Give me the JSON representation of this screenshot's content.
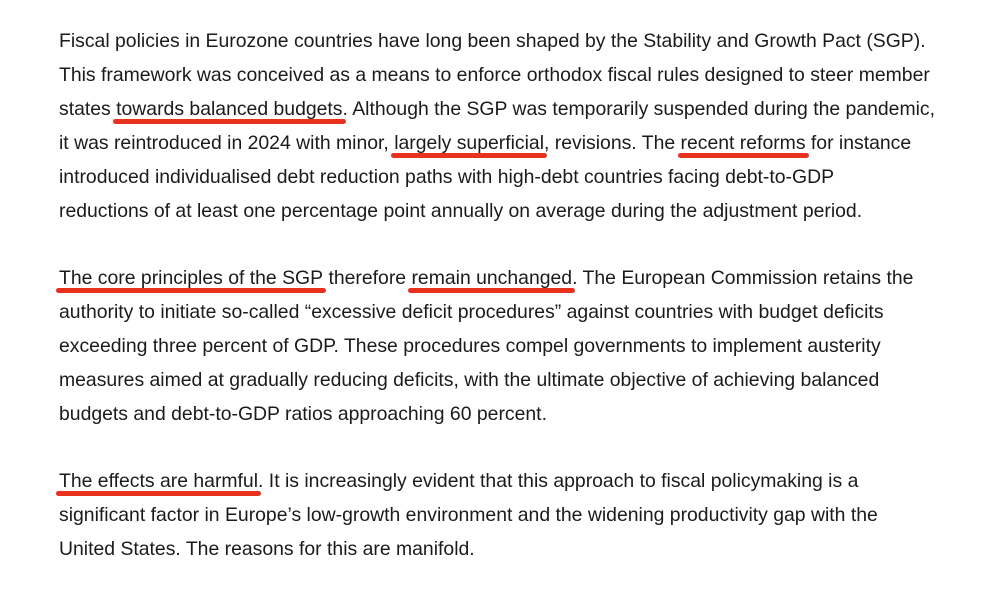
{
  "highlight_color": "#e8321e",
  "article": {
    "paragraphs": [
      {
        "lines": [
          [
            {
              "text": "Fiscal policies in Eurozone countries have long been shaped by the Stability and Growth Pact (SGP)."
            }
          ],
          [
            {
              "text": "This framework was conceived as a means to enforce orthodox fiscal rules designed to steer member"
            }
          ],
          [
            {
              "text": "states "
            },
            {
              "text": "towards balanced budgets",
              "highlight": true
            },
            {
              "text": ". Although the SGP was temporarily suspended during the pandemic,"
            }
          ],
          [
            {
              "text": "it was reintroduced in 2024 with minor, "
            },
            {
              "text": "largely superficial",
              "highlight": true
            },
            {
              "text": ", revisions. The "
            },
            {
              "text": "recent reforms",
              "highlight": true
            },
            {
              "text": " for instance"
            }
          ],
          [
            {
              "text": "introduced individualised debt reduction paths with high-debt countries facing debt-to-GDP"
            }
          ],
          [
            {
              "text": "reductions of at least one percentage point annually on average during the adjustment period."
            }
          ]
        ]
      },
      {
        "lines": [
          [
            {
              "text": "The core principles of the SGP",
              "highlight": true
            },
            {
              "text": " therefore "
            },
            {
              "text": "remain unchanged",
              "highlight": true
            },
            {
              "text": ". The European Commission retains the"
            }
          ],
          [
            {
              "text": "authority to initiate so-called “excessive deficit procedures” against countries with budget deficits"
            }
          ],
          [
            {
              "text": "exceeding three percent of GDP. These procedures compel governments to implement austerity"
            }
          ],
          [
            {
              "text": "measures aimed at gradually reducing deficits, with the ultimate objective of achieving balanced"
            }
          ],
          [
            {
              "text": "budgets and debt-to-GDP ratios approaching 60 percent."
            }
          ]
        ]
      },
      {
        "lines": [
          [
            {
              "text": "The effects are harmful",
              "highlight": true
            },
            {
              "text": ". It is increasingly evident that this approach to fiscal policymaking is a"
            }
          ],
          [
            {
              "text": "significant factor in Europe’s low-growth environment and the widening productivity gap with the"
            }
          ],
          [
            {
              "text": "United States. The reasons for this are manifold."
            }
          ]
        ]
      }
    ]
  }
}
